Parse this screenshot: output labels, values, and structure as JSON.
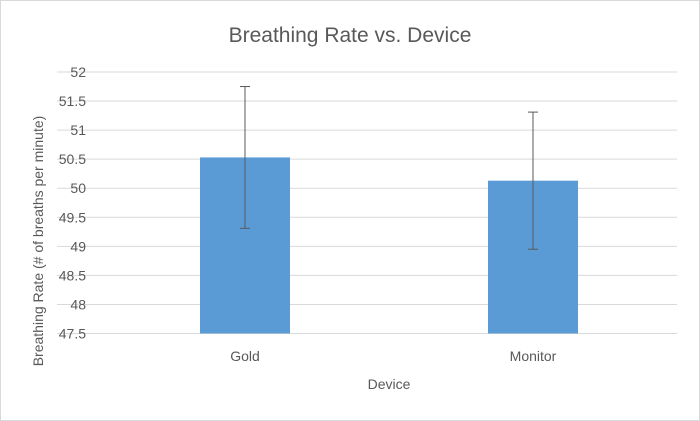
{
  "chart_data": {
    "type": "bar",
    "title": "Breathing Rate vs. Device",
    "xlabel": "Device",
    "ylabel": "Breathing Rate (# of breaths per minute)",
    "categories": [
      "Gold",
      "Monitor"
    ],
    "values": [
      50.53,
      50.13
    ],
    "error": [
      1.22,
      1.18
    ],
    "ylim": [
      47.5,
      52
    ],
    "yticks": [
      "47.5",
      "48",
      "48.5",
      "49",
      "49.5",
      "50",
      "50.5",
      "51",
      "51.5",
      "52"
    ],
    "grid": true,
    "legend": "none",
    "bar_color": "#5B9BD5",
    "error_color": "#595959",
    "grid_color": "#D9D9D9"
  }
}
